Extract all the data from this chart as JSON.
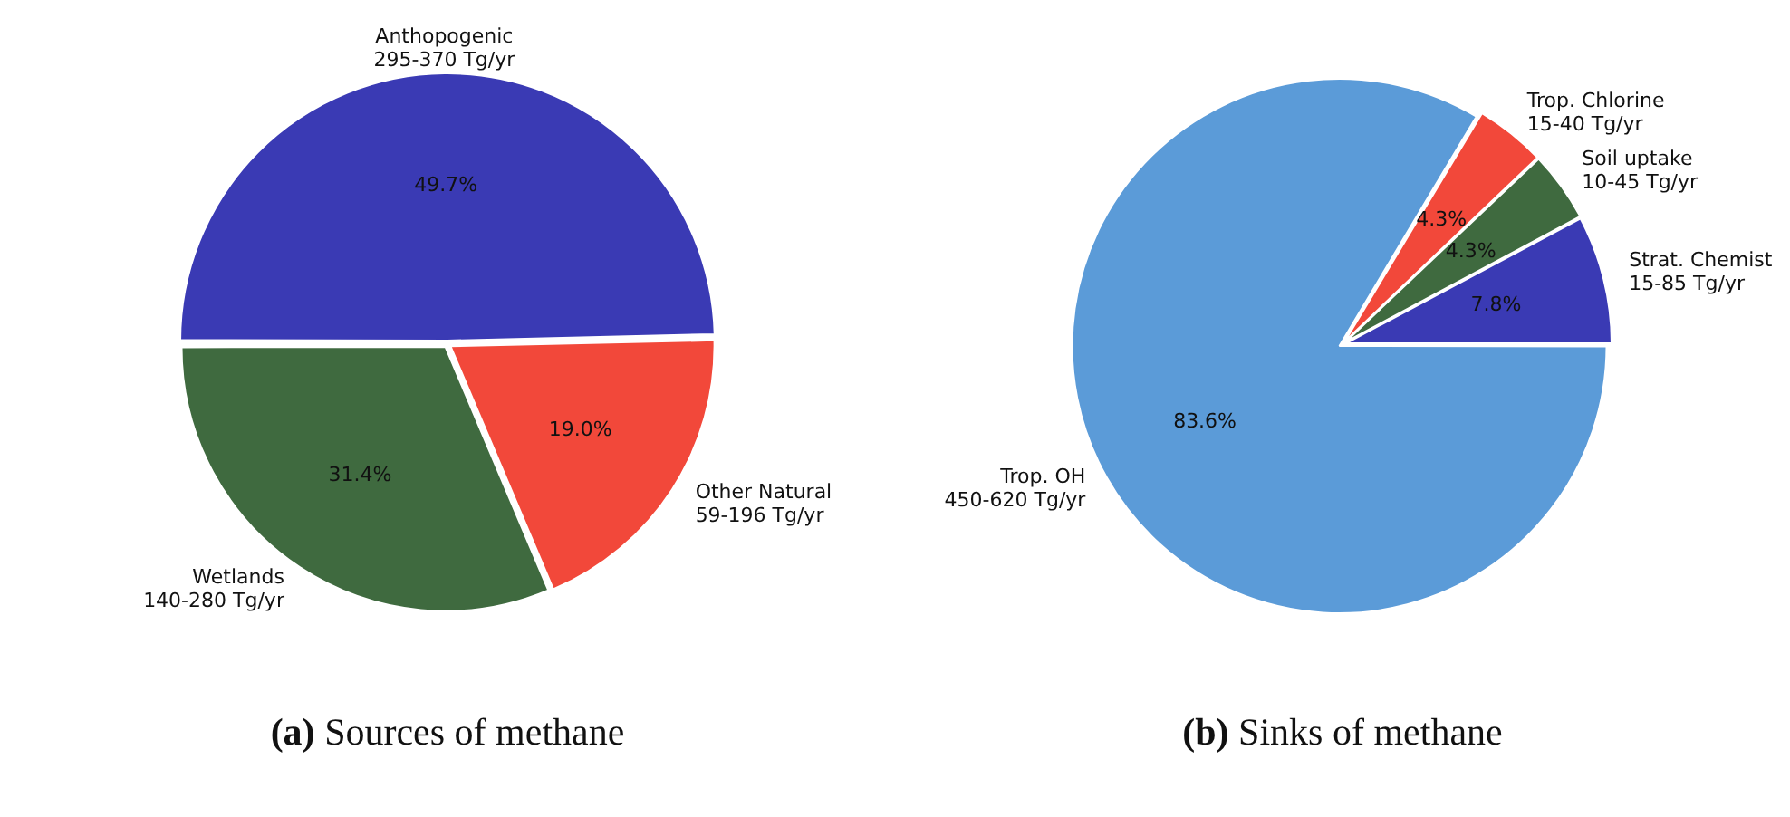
{
  "chart_data": [
    {
      "type": "pie",
      "title": "(a) Sources of methane",
      "categories": [
        "Anthopogenic\n295-370 Tg/yr",
        "Other Natural\n59-196 Tg/yr",
        "Wetlands\n140-280 Tg/yr"
      ],
      "values": [
        49.7,
        19.0,
        31.4
      ],
      "value_labels": [
        "49.7%",
        "19.0%",
        "31.4%"
      ],
      "colors": [
        "#3a3ab4",
        "#f2483a",
        "#3f6a3f"
      ],
      "legend": false
    },
    {
      "type": "pie",
      "title": "(b) Sinks of methane",
      "categories": [
        "Trop. OH\n450-620 Tg/yr",
        "Trop. Chlorine\n15-40 Tg/yr",
        "Soil uptake\n10-45 Tg/yr",
        "Strat. Chemist\n15-85 Tg/yr"
      ],
      "values": [
        83.6,
        4.3,
        4.3,
        7.8
      ],
      "value_labels": [
        "83.6%",
        "4.3%",
        "4.3%",
        "7.8%"
      ],
      "colors": [
        "#5b9bd8",
        "#f2483a",
        "#3f6a3f",
        "#3a3ab4"
      ],
      "legend": false
    }
  ]
}
